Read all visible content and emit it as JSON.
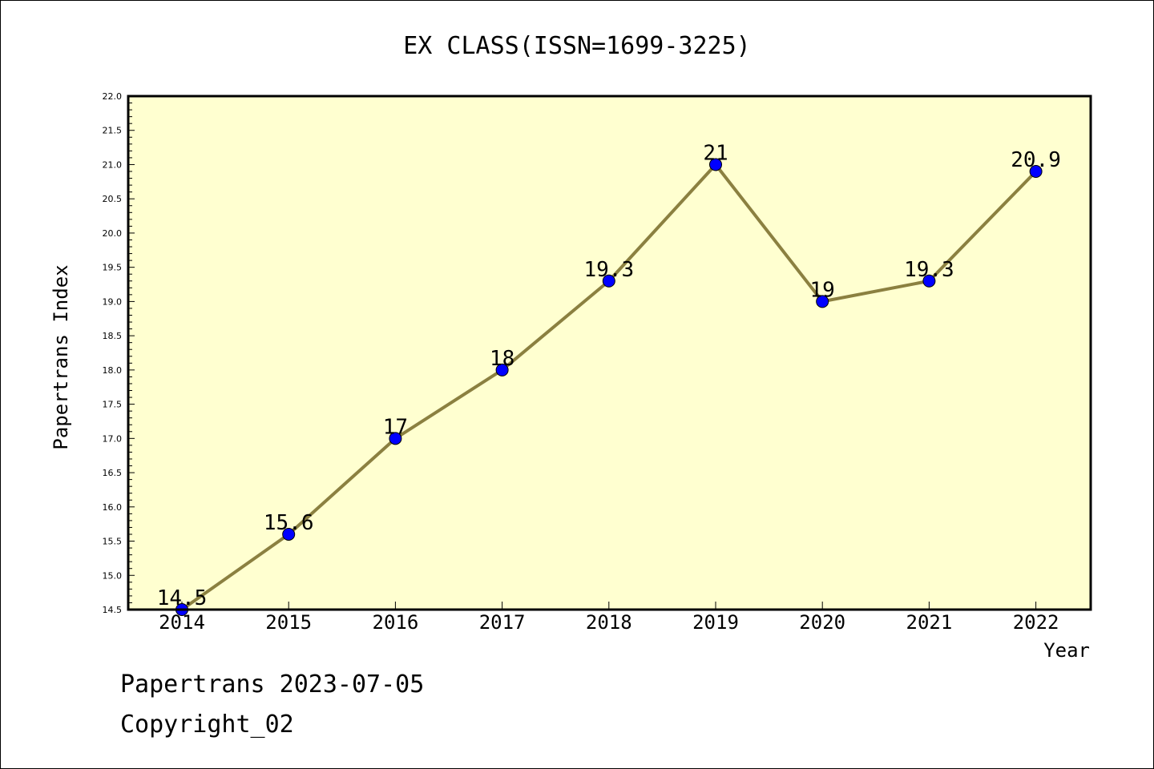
{
  "chart_data": {
    "type": "line",
    "title": "EX CLASS(ISSN=1699-3225)",
    "xlabel": "Year",
    "ylabel": "Papertrans Index",
    "x": [
      "2014",
      "2015",
      "2016",
      "2017",
      "2018",
      "2019",
      "2020",
      "2021",
      "2022"
    ],
    "values": [
      14.5,
      15.6,
      17,
      18,
      19.3,
      21,
      19,
      19.3,
      20.9
    ],
    "data_labels": [
      "14.5",
      "15.6",
      "17",
      "18",
      "19.3",
      "21",
      "19",
      "19.3",
      "20.9"
    ],
    "ylim": [
      14.5,
      22.0
    ],
    "y_ticks": [
      "14.5",
      "15.0",
      "15.5",
      "16.0",
      "16.5",
      "17.0",
      "17.5",
      "18.0",
      "18.5",
      "19.0",
      "19.5",
      "20.0",
      "20.5",
      "21.0",
      "21.5",
      "22.0"
    ],
    "grid": false,
    "legend": "none",
    "colors": {
      "plot_background": "#ffffd0",
      "line": "#8b8040",
      "marker": "#0000ff"
    }
  },
  "footer": {
    "line1": "Papertrans 2023-07-05",
    "line2": "Copyright_02"
  }
}
